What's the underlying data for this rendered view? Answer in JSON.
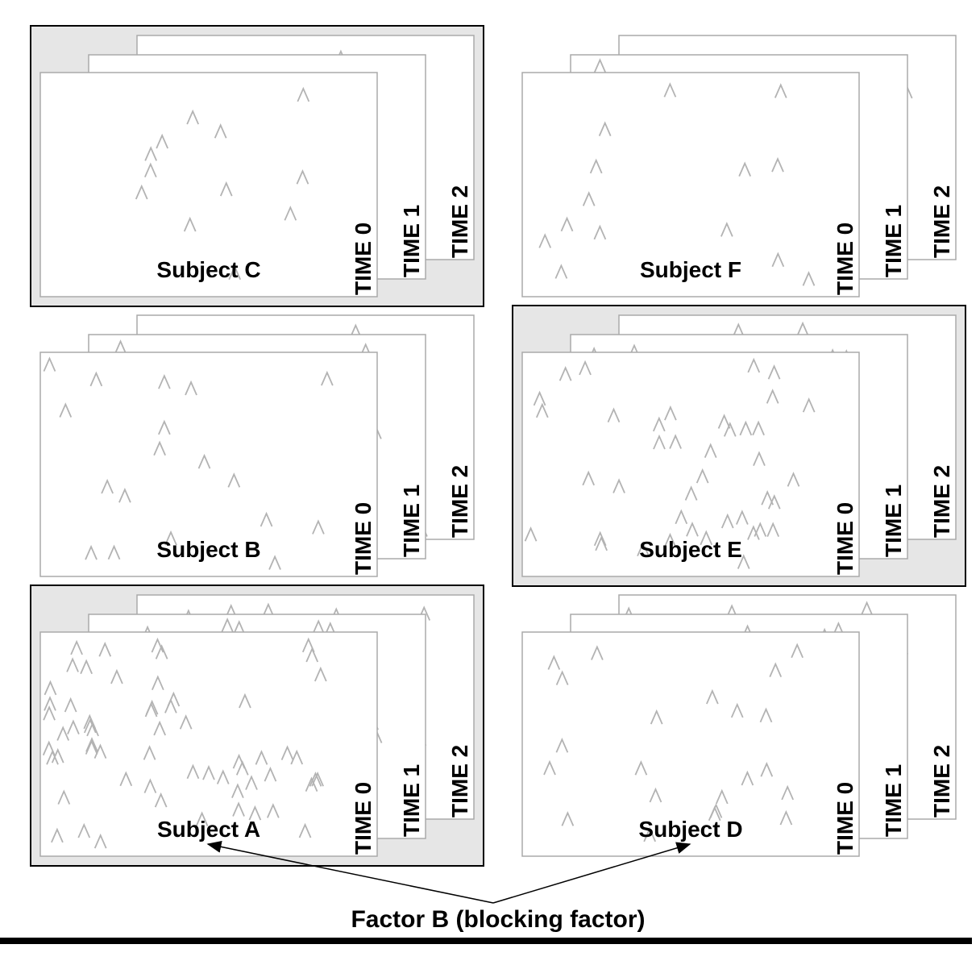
{
  "panels": [
    {
      "subject": "Subject C",
      "times": [
        "TIME 0",
        "TIME 1",
        "TIME 2"
      ]
    },
    {
      "subject": "Subject F",
      "times": [
        "TIME 0",
        "TIME 1",
        "TIME 2"
      ]
    },
    {
      "subject": "Subject B",
      "times": [
        "TIME 0",
        "TIME 1",
        "TIME 2"
      ]
    },
    {
      "subject": "Subject E",
      "times": [
        "TIME 0",
        "TIME 1",
        "TIME 2"
      ]
    },
    {
      "subject": "Subject A",
      "times": [
        "TIME 0",
        "TIME 1",
        "TIME 2"
      ]
    },
    {
      "subject": "Subject D",
      "times": [
        "TIME 0",
        "TIME 1",
        "TIME 2"
      ]
    }
  ],
  "annotation": "Factor B (blocking factor)"
}
